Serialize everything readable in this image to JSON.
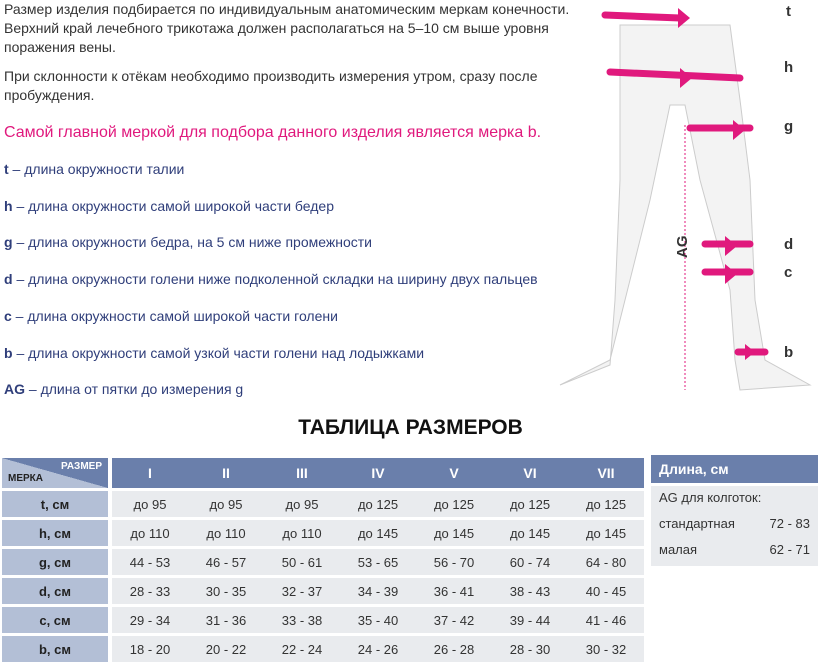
{
  "intro": [
    "Размер изделия подбирается по индивидуальным анатомическим меркам конечности. Верхний край лечебного трикотажа должен располагаться на 5–10 см выше уровня поражения вены.",
    "При склонности к отёкам необходимо производить измерения утром, сразу после пробуждения."
  ],
  "highlight": "Самой главной меркой для подбора данного изделия является мерка b.",
  "definitions": [
    {
      "key": "t",
      "text": " – длина окружности талии"
    },
    {
      "key": "h",
      "text": " – длина окружности самой широкой части бедер"
    },
    {
      "key": "g",
      "text": " – длина окружности бедра, на 5 см ниже промежности"
    },
    {
      "key": "d",
      "text": " – длина окружности голени ниже подколенной складки на ширину двух пальцев"
    },
    {
      "key": "c",
      "text": " – длина окружности самой широкой части голени"
    },
    {
      "key": "b",
      "text": " – длина окружности самой узкой части голени над лодыжками"
    },
    {
      "key": "AG",
      "text": " – длина от пятки до измерения g"
    }
  ],
  "figure": {
    "labels": [
      "t",
      "h",
      "g",
      "d",
      "c",
      "b"
    ],
    "ag_label": "AG",
    "accent": "#e0197d"
  },
  "table_title": "ТАБЛИЦА РАЗМЕРОВ",
  "table": {
    "corner_row": "МЕРКА",
    "corner_col": "РАЗМЕР",
    "sizes": [
      "I",
      "II",
      "III",
      "IV",
      "V",
      "VI",
      "VII"
    ],
    "rows": [
      {
        "label": "t, см",
        "values": [
          "до 95",
          "до 95",
          "до 95",
          "до 125",
          "до 125",
          "до 125",
          "до 125"
        ]
      },
      {
        "label": "h, см",
        "values": [
          "до 110",
          "до 110",
          "до 110",
          "до 145",
          "до 145",
          "до 145",
          "до 145"
        ]
      },
      {
        "label": "g, см",
        "values": [
          "44 - 53",
          "46 - 57",
          "50 - 61",
          "53 - 65",
          "56 - 70",
          "60 - 74",
          "64 - 80"
        ]
      },
      {
        "label": "d, см",
        "values": [
          "28 - 33",
          "30 - 35",
          "32 - 37",
          "34 - 39",
          "36 - 41",
          "38 - 43",
          "40 - 45"
        ]
      },
      {
        "label": "c, см",
        "values": [
          "29 - 34",
          "31 - 36",
          "33 - 38",
          "35 - 40",
          "37 - 42",
          "39 - 44",
          "41 - 46"
        ]
      },
      {
        "label": "b, см",
        "values": [
          "18 - 20",
          "20 - 22",
          "22 - 24",
          "24 - 26",
          "26 - 28",
          "28 - 30",
          "30 - 32"
        ]
      }
    ]
  },
  "length_table": {
    "header": "Длина, см",
    "subtitle": "AG для колготок:",
    "rows": [
      {
        "label": "стандартная",
        "value": "72 - 83"
      },
      {
        "label": "малая",
        "value": "62 - 71"
      }
    ]
  }
}
